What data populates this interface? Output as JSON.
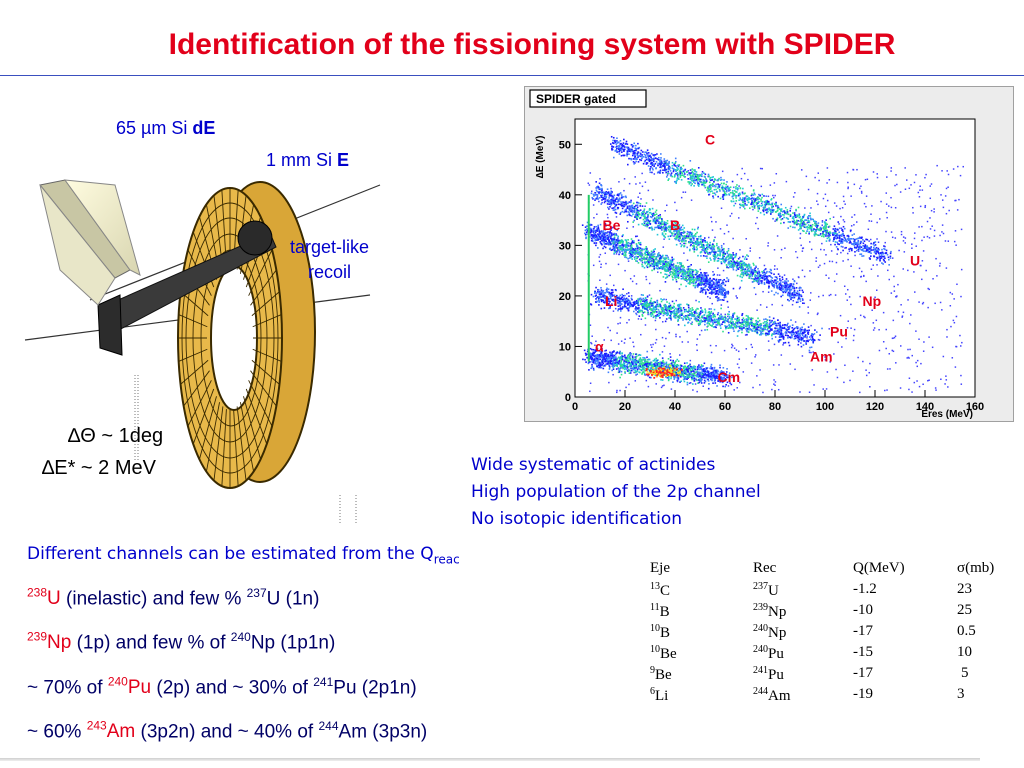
{
  "title": "Identification of the fissioning system with SPIDER",
  "detector": {
    "de_prefix": "65 µm Si ",
    "de_bold": "dE",
    "e_prefix": "1 mm Si ",
    "e_bold": "E",
    "recoil_line1": "target-like",
    "recoil_line2": "recoil"
  },
  "resolution": {
    "theta": "∆Θ ~ 1deg",
    "energy": "∆E* ~ 2 MeV"
  },
  "plot": {
    "box_label": "SPIDER gated",
    "ylabel": "∆E (MeV)",
    "xlabel": "Eres (MeV)",
    "x_ticks": [
      "0",
      "20",
      "40",
      "60",
      "80",
      "100",
      "120",
      "140",
      "160"
    ],
    "y_ticks": [
      "0",
      "10",
      "20",
      "30",
      "40",
      "50"
    ],
    "ejectile_labels": [
      "C",
      "Be",
      "B",
      "Li",
      "α"
    ],
    "actinide_labels": [
      "U",
      "Np",
      "Pu",
      "Am",
      "Cm"
    ],
    "label_color": "#e2001a"
  },
  "chart_data": {
    "type": "heatmap",
    "title": "SPIDER gated",
    "xlabel": "Eres (MeV)",
    "ylabel": "∆E (MeV)",
    "xlim": [
      0,
      160
    ],
    "ylim": [
      0,
      55
    ],
    "bands": [
      {
        "name": "C",
        "from": [
          15,
          50
        ],
        "to": [
          125,
          28
        ]
      },
      {
        "name": "B",
        "from": [
          8,
          41
        ],
        "to": [
          90,
          20
        ]
      },
      {
        "name": "Be",
        "from": [
          5,
          33
        ],
        "to": [
          60,
          21
        ]
      },
      {
        "name": "Li",
        "from": [
          8,
          20
        ],
        "to": [
          95,
          12
        ]
      },
      {
        "name": "α",
        "from": [
          5,
          8
        ],
        "to": [
          60,
          4
        ]
      }
    ]
  },
  "notes": {
    "line1": "Wide systematic of actinides",
    "line2": "High population of the 2p channel",
    "line3": "No isotopic identification"
  },
  "channels": {
    "head": "Different channels can be estimated from the Q",
    "head_sub": "reac",
    "l1_a_sup": "238",
    "l1_a": "U",
    "l1_b": " (inelastic) and few % ",
    "l1_c_sup": "237",
    "l1_c": "U (1n)",
    "l2_a_sup": "239",
    "l2_a": "Np",
    "l2_b": " (1p) and few % of ",
    "l2_c_sup": "240",
    "l2_c": "Np (1p1n)",
    "l3_a": "~ 70% of ",
    "l3_b_sup": "240",
    "l3_b": "Pu",
    "l3_c": " (2p) and ~ 30% of ",
    "l3_d_sup": "241",
    "l3_d": "Pu (2p1n)",
    "l4_a": "~ 60% ",
    "l4_b_sup": "243",
    "l4_b": "Am",
    "l4_c": " (3p2n) and ~ 40% of ",
    "l4_d_sup": "244",
    "l4_d": "Am (3p3n)"
  },
  "table": {
    "headers": [
      "Eje",
      "Rec",
      "Q(MeV)",
      "σ(mb)"
    ],
    "rows": [
      {
        "eje_sup": "13",
        "eje": "C",
        "rec_sup": "237",
        "rec": "U",
        "q": "-1.2",
        "s": "23"
      },
      {
        "eje_sup": "11",
        "eje": "B",
        "rec_sup": "239",
        "rec": "Np",
        "q": "-10",
        "s": "25"
      },
      {
        "eje_sup": "10",
        "eje": "B",
        "rec_sup": "240",
        "rec": "Np",
        "q": "-17",
        "s": "0.5"
      },
      {
        "eje_sup": "10",
        "eje": "Be",
        "rec_sup": "240",
        "rec": "Pu",
        "q": "-15",
        "s": "10"
      },
      {
        "eje_sup": "9",
        "eje": "Be",
        "rec_sup": "241",
        "rec": "Pu",
        "q": "-17",
        "s": "5"
      },
      {
        "eje_sup": "6",
        "eje": "Li",
        "rec_sup": "244",
        "rec": "Am",
        "q": "-19",
        "s": "3"
      }
    ]
  }
}
